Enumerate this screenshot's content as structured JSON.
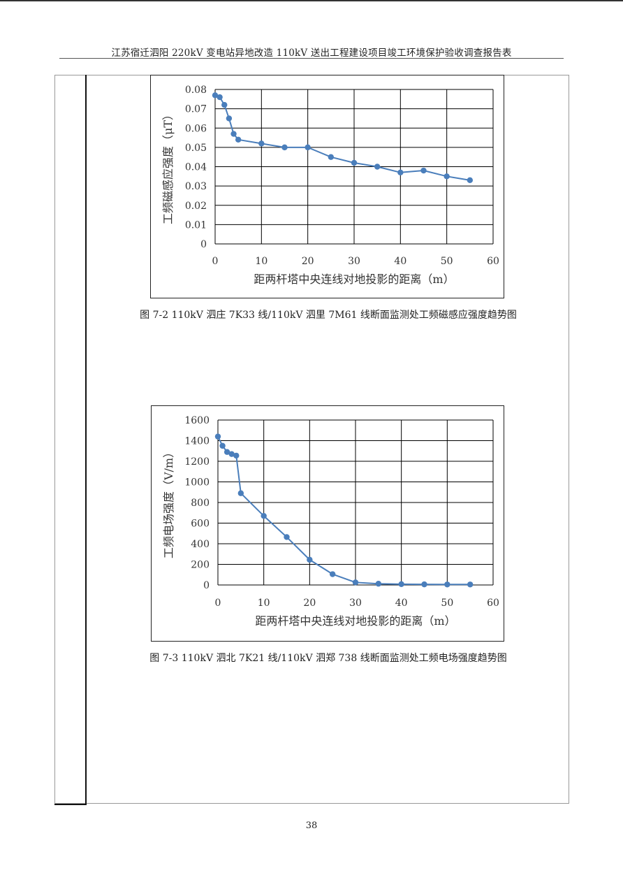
{
  "header": {
    "title": "江苏宿迁泗阳 220kV 变电站异地改造 110kV 送出工程建设项目竣工环境保护验收调查报告表"
  },
  "figures": [
    {
      "caption": "图 7-2 110kV 泗庄 7K33 线/110kV 泗里 7M61 线断面监测处工频磁感应强度趋势图"
    },
    {
      "caption": "图 7-3 110kV 泗北 7K21 线/110kV 泗郑 738 线断面监测处工频电场强度趋势图"
    }
  ],
  "chart_data": [
    {
      "type": "line",
      "title": "",
      "xlabel": "距两杆塔中央连线对地投影的距离（m）",
      "ylabel": "工频磁感应强度（μT）",
      "xlim": [
        0,
        60
      ],
      "ylim": [
        0,
        0.08
      ],
      "xticks": [
        "0",
        "10",
        "20",
        "30",
        "40",
        "50",
        "60"
      ],
      "yticks": [
        "0",
        "0.01",
        "0.02",
        "0.03",
        "0.04",
        "0.05",
        "0.06",
        "0.07",
        "0.08"
      ],
      "grid": true,
      "color": "#4a7ebb",
      "series": [
        {
          "x": [
            0,
            1,
            2,
            3,
            4,
            5,
            10,
            15,
            20,
            25,
            30,
            35,
            40,
            45,
            50,
            55
          ],
          "values": [
            0.077,
            0.076,
            0.072,
            0.065,
            0.057,
            0.054,
            0.052,
            0.05,
            0.05,
            0.045,
            0.042,
            0.04,
            0.037,
            0.038,
            0.035,
            0.033
          ]
        }
      ]
    },
    {
      "type": "line",
      "title": "",
      "xlabel": "距两杆塔中央连线对地投影的距离（m）",
      "ylabel": "工频电场强度（V/m）",
      "xlim": [
        0,
        60
      ],
      "ylim": [
        0,
        1600
      ],
      "xticks": [
        "0",
        "10",
        "20",
        "30",
        "40",
        "50",
        "60"
      ],
      "yticks": [
        "0",
        "200",
        "400",
        "600",
        "800",
        "1000",
        "1200",
        "1400",
        "1600"
      ],
      "grid": true,
      "color": "#4a7ebb",
      "series": [
        {
          "x": [
            0,
            1,
            2,
            3,
            4,
            5,
            10,
            15,
            20,
            25,
            30,
            35,
            40,
            45,
            50,
            55
          ],
          "values": [
            1440,
            1350,
            1290,
            1270,
            1255,
            890,
            670,
            465,
            245,
            105,
            25,
            12,
            8,
            6,
            5,
            5
          ]
        }
      ]
    }
  ],
  "page": {
    "number": "38"
  }
}
